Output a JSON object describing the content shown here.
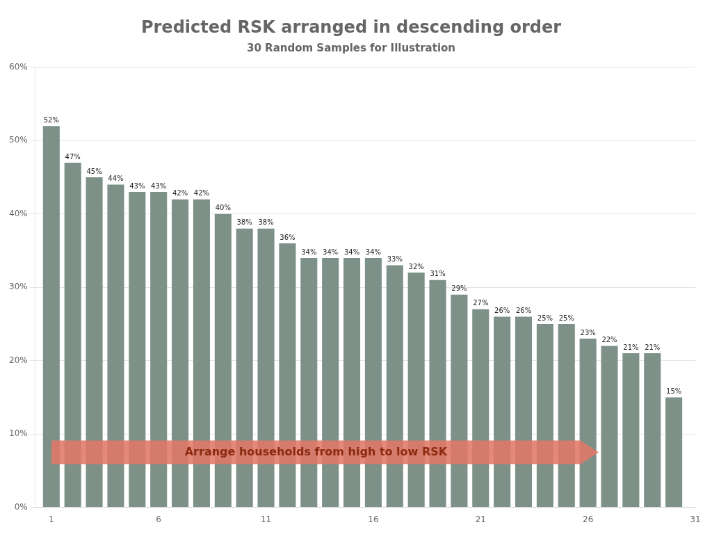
{
  "chart_data": {
    "type": "bar",
    "title": "Predicted RSK arranged in descending order",
    "subtitle": "30 Random Samples for Illustration",
    "x": [
      1,
      2,
      3,
      4,
      5,
      6,
      7,
      8,
      9,
      10,
      11,
      12,
      13,
      14,
      15,
      16,
      17,
      18,
      19,
      20,
      21,
      22,
      23,
      24,
      25,
      26,
      27,
      28,
      29,
      30
    ],
    "values": [
      52,
      47,
      45,
      44,
      43,
      43,
      42,
      42,
      40,
      38,
      38,
      36,
      34,
      34,
      34,
      34,
      33,
      32,
      31,
      29,
      27,
      26,
      26,
      25,
      25,
      23,
      22,
      21,
      21,
      15
    ],
    "value_labels": [
      "52%",
      "47%",
      "45%",
      "44%",
      "43%",
      "43%",
      "42%",
      "42%",
      "40%",
      "38%",
      "38%",
      "36%",
      "34%",
      "34%",
      "34%",
      "34%",
      "33%",
      "32%",
      "31%",
      "29%",
      "27%",
      "26%",
      "26%",
      "25%",
      "25%",
      "23%",
      "22%",
      "21%",
      "21%",
      "15%"
    ],
    "data_labels": true,
    "color": "#7d9188",
    "xlim": [
      0.25,
      31
    ],
    "xticks": [
      1,
      6,
      11,
      16,
      21,
      26,
      31
    ],
    "ylim": [
      0,
      60
    ],
    "yticks": [
      {
        "value": 0,
        "label": "0%"
      },
      {
        "value": 10,
        "label": "10%"
      },
      {
        "value": 20,
        "label": "20%"
      },
      {
        "value": 30,
        "label": "30%"
      },
      {
        "value": 40,
        "label": "40%"
      },
      {
        "value": 50,
        "label": "50%"
      },
      {
        "value": 60,
        "label": "60%"
      }
    ],
    "grid": true,
    "annotation": {
      "text": "Arrange households from high to low RSK",
      "x_start": 1.0,
      "x_end": 26.5,
      "y": 7.5,
      "color": "#e07868"
    }
  }
}
